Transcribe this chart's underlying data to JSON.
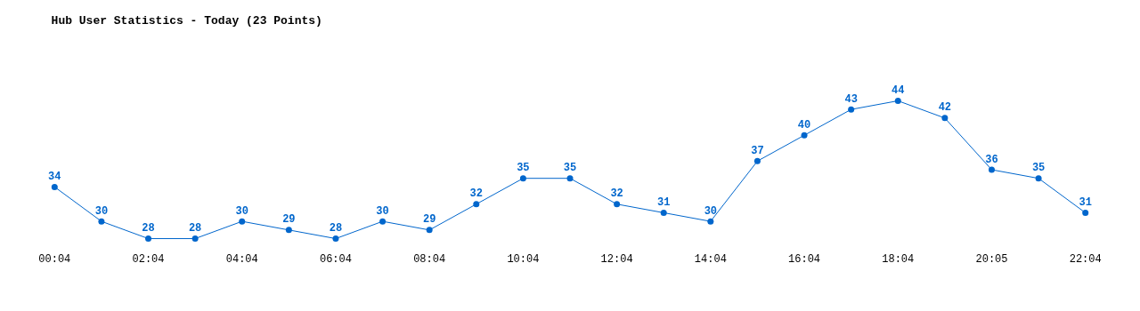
{
  "chart_data": {
    "type": "line",
    "title": "Hub User Statistics - Today (23 Points)",
    "categories": [
      "00:04",
      null,
      "02:04",
      null,
      "04:04",
      null,
      "06:04",
      null,
      "08:04",
      null,
      "10:04",
      null,
      "12:04",
      null,
      "14:04",
      null,
      "16:04",
      null,
      "18:04",
      null,
      "20:05",
      null,
      "22:04"
    ],
    "series": [
      {
        "color": "#0066cc",
        "values": [
          34,
          30,
          28,
          28,
          30,
          29,
          28,
          30,
          29,
          32,
          35,
          35,
          32,
          31,
          30,
          37,
          40,
          43,
          44,
          42,
          36,
          35,
          31
        ]
      }
    ],
    "data_labels": true,
    "marker": "circle",
    "line_style": "solid",
    "grid": false
  }
}
